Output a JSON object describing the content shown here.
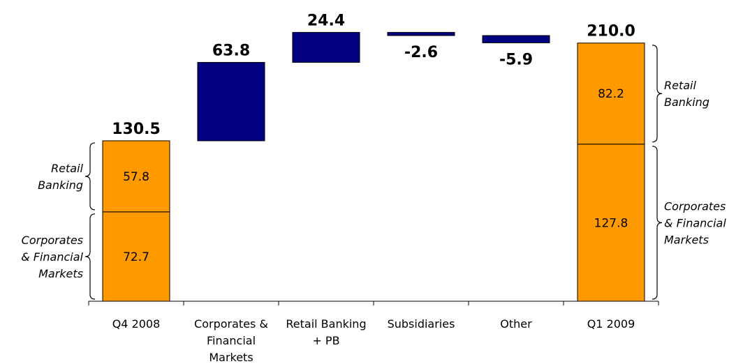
{
  "chart_data": {
    "type": "bar",
    "categories": [
      [
        "Q4 2008"
      ],
      [
        "Corporates &",
        "Financial",
        "Markets"
      ],
      [
        "Retail Banking",
        "+ PB"
      ],
      [
        "Subsidiaries"
      ],
      [
        "Other"
      ],
      [
        "Q1 2009"
      ]
    ],
    "bars": [
      {
        "kind": "total",
        "value": 130.5,
        "label": "130.5",
        "segments": [
          {
            "name": "Corporates & Financial Markets",
            "value": 72.7,
            "label": "72.7"
          },
          {
            "name": "Retail Banking",
            "value": 57.8,
            "label": "57.8"
          }
        ]
      },
      {
        "kind": "delta",
        "value": 63.8,
        "label": "63.8"
      },
      {
        "kind": "delta",
        "value": 24.4,
        "label": "24.4"
      },
      {
        "kind": "delta",
        "value": -2.6,
        "label": "-2.6"
      },
      {
        "kind": "delta",
        "value": -5.9,
        "label": "-5.9"
      },
      {
        "kind": "total",
        "value": 210.0,
        "label": "210.0",
        "segments": [
          {
            "name": "Corporates & Financial Markets",
            "value": 127.8,
            "label": "127.8"
          },
          {
            "name": "Retail Banking",
            "value": 82.2,
            "label": "82.2"
          }
        ]
      }
    ],
    "side_labels": {
      "left": [
        {
          "segment": "Retail Banking",
          "lines": [
            "Retail",
            "Banking"
          ]
        },
        {
          "segment": "Corporates & Financial Markets",
          "lines": [
            "Corporates",
            "& Financial",
            "Markets"
          ]
        }
      ],
      "right": [
        {
          "segment": "Retail Banking",
          "lines": [
            "Retail",
            "Banking"
          ]
        },
        {
          "segment": "Corporates & Financial Markets",
          "lines": [
            "Corporates",
            "& Financial",
            "Markets"
          ]
        }
      ]
    },
    "ylim": [
      0,
      219.5
    ],
    "grid": false,
    "colors": {
      "total_fill": "#FF9900",
      "delta_fill": "#000080",
      "outline": "#000000"
    }
  }
}
